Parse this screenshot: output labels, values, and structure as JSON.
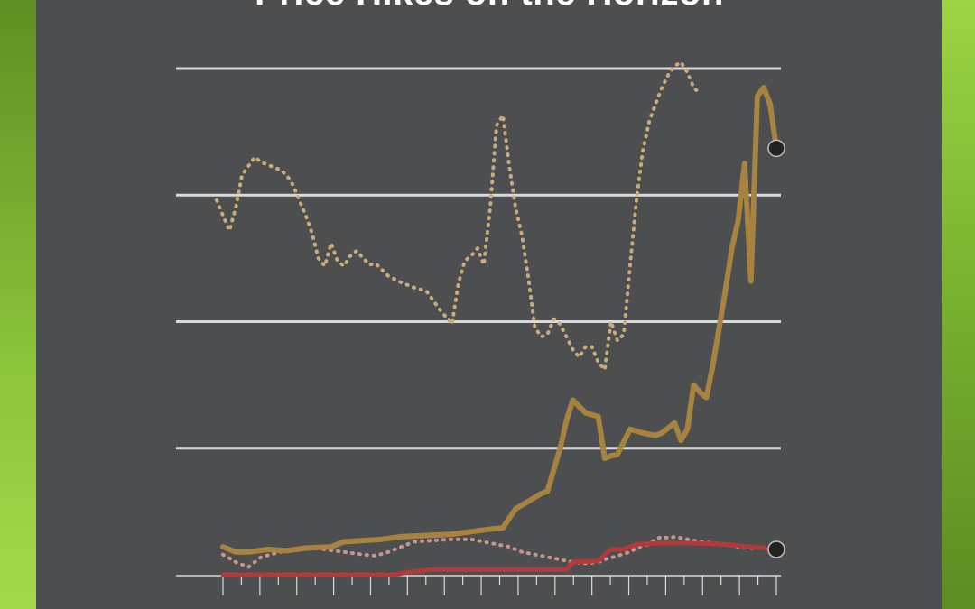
{
  "title": "Price Hikes on the Horizon",
  "colors": {
    "background": "#4d4e50",
    "gold": "#a6833f",
    "gold_dotted": "#c9ab7c",
    "pink_dotted": "#c8968e",
    "red": "#b23a3a",
    "gridline": "#d9dadb",
    "endpoint": "#222222",
    "frame_green": "#8cc43c"
  },
  "chart_data": {
    "type": "line",
    "title": "Price Hikes on the Horizon",
    "xlabel": "",
    "ylabel": "",
    "x_range": [
      1,
      86
    ],
    "y_range": [
      0,
      400
    ],
    "gridlines": [
      100,
      200,
      300,
      400
    ],
    "grid": true,
    "legend": "none",
    "x_tick_count": 31,
    "series": [
      {
        "style": "solid",
        "color": "gold",
        "points": [
          [
            1,
            22
          ],
          [
            3,
            18
          ],
          [
            5,
            18
          ],
          [
            8,
            20
          ],
          [
            11,
            19
          ],
          [
            14,
            21
          ],
          [
            18,
            22
          ],
          [
            20,
            26
          ],
          [
            23,
            27
          ],
          [
            26,
            28
          ],
          [
            29,
            30
          ],
          [
            33,
            31
          ],
          [
            37,
            32
          ],
          [
            40,
            34
          ],
          [
            43,
            36
          ],
          [
            45,
            37
          ],
          [
            47,
            52
          ],
          [
            49,
            58
          ],
          [
            51,
            64
          ],
          [
            52,
            66
          ],
          [
            54,
            100
          ],
          [
            55,
            122
          ],
          [
            56,
            138
          ],
          [
            57,
            133
          ],
          [
            58,
            128
          ],
          [
            60,
            125
          ],
          [
            61,
            92
          ],
          [
            62,
            94
          ],
          [
            63,
            95
          ],
          [
            65,
            115
          ],
          [
            67,
            112
          ],
          [
            69,
            110
          ],
          [
            70,
            112
          ],
          [
            72,
            120
          ],
          [
            73,
            106
          ],
          [
            74,
            115
          ],
          [
            75,
            150
          ],
          [
            76,
            144
          ],
          [
            77,
            140
          ],
          [
            78,
            165
          ],
          [
            79,
            195
          ],
          [
            80,
            225
          ],
          [
            81,
            258
          ],
          [
            82,
            280
          ],
          [
            83,
            325
          ],
          [
            84,
            232
          ],
          [
            85,
            378
          ],
          [
            86,
            385
          ],
          [
            87,
            372
          ],
          [
            88,
            337
          ]
        ]
      },
      {
        "style": "dotted",
        "color": "gold_dotted",
        "points": [
          [
            0,
            296
          ],
          [
            1,
            284
          ],
          [
            2,
            272
          ],
          [
            3,
            290
          ],
          [
            4,
            316
          ],
          [
            6,
            330
          ],
          [
            7,
            326
          ],
          [
            8,
            324
          ],
          [
            9,
            322
          ],
          [
            10,
            320
          ],
          [
            11,
            316
          ],
          [
            12,
            308
          ],
          [
            13,
            296
          ],
          [
            14,
            284
          ],
          [
            15,
            270
          ],
          [
            16,
            250
          ],
          [
            17,
            244
          ],
          [
            18,
            262
          ],
          [
            19,
            248
          ],
          [
            20,
            244
          ],
          [
            21,
            252
          ],
          [
            22,
            256
          ],
          [
            24,
            245
          ],
          [
            25,
            246
          ],
          [
            27,
            236
          ],
          [
            29,
            231
          ],
          [
            31,
            227
          ],
          [
            33,
            224
          ],
          [
            35,
            210
          ],
          [
            37,
            198
          ],
          [
            38,
            230
          ],
          [
            39,
            248
          ],
          [
            40,
            252
          ],
          [
            41,
            258
          ],
          [
            42,
            245
          ],
          [
            43,
            290
          ],
          [
            44,
            355
          ],
          [
            45,
            363
          ],
          [
            46,
            323
          ],
          [
            47,
            290
          ],
          [
            48,
            268
          ],
          [
            49,
            235
          ],
          [
            50,
            196
          ],
          [
            51,
            188
          ],
          [
            52,
            190
          ],
          [
            53,
            202
          ],
          [
            54,
            198
          ],
          [
            55,
            188
          ],
          [
            56,
            178
          ],
          [
            57,
            172
          ],
          [
            58,
            180
          ],
          [
            59,
            180
          ],
          [
            60,
            168
          ],
          [
            61,
            162
          ],
          [
            62,
            200
          ],
          [
            63,
            185
          ],
          [
            64,
            190
          ],
          [
            65,
            245
          ],
          [
            66,
            296
          ],
          [
            67,
            335
          ],
          [
            68,
            358
          ],
          [
            69,
            372
          ],
          [
            70,
            385
          ],
          [
            71,
            395
          ],
          [
            72,
            402
          ],
          [
            73,
            405
          ],
          [
            74,
            397
          ],
          [
            75,
            385
          ],
          [
            76,
            380
          ]
        ]
      },
      {
        "style": "dotted",
        "color": "pink_dotted",
        "points": [
          [
            1,
            16
          ],
          [
            3,
            10
          ],
          [
            5,
            6
          ],
          [
            7,
            14
          ],
          [
            10,
            18
          ],
          [
            14,
            22
          ],
          [
            17,
            20
          ],
          [
            20,
            18
          ],
          [
            23,
            16
          ],
          [
            25,
            15
          ],
          [
            27,
            18
          ],
          [
            29,
            22
          ],
          [
            31,
            26
          ],
          [
            34,
            27
          ],
          [
            37,
            28
          ],
          [
            40,
            28
          ],
          [
            42,
            26
          ],
          [
            44,
            24
          ],
          [
            46,
            22
          ],
          [
            48,
            18
          ],
          [
            50,
            16
          ],
          [
            52,
            14
          ],
          [
            54,
            12
          ],
          [
            56,
            10
          ],
          [
            58,
            9
          ],
          [
            60,
            10
          ],
          [
            61,
            12
          ],
          [
            63,
            15
          ],
          [
            65,
            18
          ],
          [
            66,
            21
          ],
          [
            67,
            23
          ],
          [
            68,
            24
          ],
          [
            69,
            28
          ],
          [
            70,
            30
          ],
          [
            71,
            29
          ],
          [
            72,
            30
          ],
          [
            74,
            28
          ],
          [
            76,
            26
          ],
          [
            78,
            25
          ],
          [
            80,
            24
          ],
          [
            82,
            22
          ],
          [
            84,
            21
          ],
          [
            86,
            21
          ],
          [
            88,
            20
          ]
        ]
      },
      {
        "style": "solid",
        "color": "red",
        "points": [
          [
            1,
            0
          ],
          [
            10,
            0
          ],
          [
            20,
            0
          ],
          [
            28,
            0
          ],
          [
            30,
            2
          ],
          [
            34,
            4
          ],
          [
            40,
            4
          ],
          [
            48,
            4
          ],
          [
            55,
            4
          ],
          [
            56,
            10
          ],
          [
            60,
            11
          ],
          [
            61,
            16
          ],
          [
            62,
            20
          ],
          [
            64,
            20
          ],
          [
            66,
            24
          ],
          [
            70,
            25
          ],
          [
            74,
            25
          ],
          [
            80,
            24
          ],
          [
            88,
            20
          ]
        ]
      }
    ],
    "endpoints": [
      {
        "x": 88,
        "y": 337
      },
      {
        "x": 88,
        "y": 20
      }
    ]
  }
}
